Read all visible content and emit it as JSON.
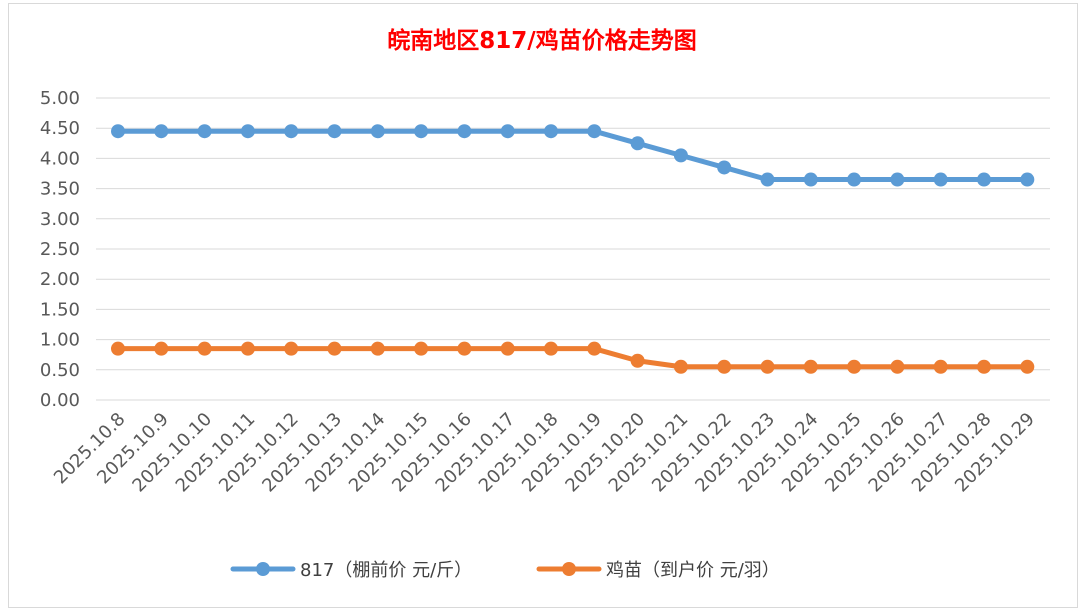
{
  "chart_data": {
    "type": "line",
    "title": "皖南地区817/鸡苗价格走势图",
    "xlabel": "",
    "ylabel": "",
    "categories": [
      "2025.10.8",
      "2025.10.9",
      "2025.10.10",
      "2025.10.11",
      "2025.10.12",
      "2025.10.13",
      "2025.10.14",
      "2025.10.15",
      "2025.10.16",
      "2025.10.17",
      "2025.10.18",
      "2025.10.19",
      "2025.10.20",
      "2025.10.21",
      "2025.10.22",
      "2025.10.23",
      "2025.10.24",
      "2025.10.25",
      "2025.10.26",
      "2025.10.27",
      "2025.10.28",
      "2025.10.29"
    ],
    "ylim": [
      0,
      5
    ],
    "yticks": [
      "0.00",
      "0.50",
      "1.00",
      "1.50",
      "2.00",
      "2.50",
      "3.00",
      "3.50",
      "4.00",
      "4.50",
      "5.00"
    ],
    "grid": true,
    "legend_position": "bottom",
    "series": [
      {
        "name": "817（棚前价 元/斤）",
        "color": "#5b9bd5",
        "values": [
          4.45,
          4.45,
          4.45,
          4.45,
          4.45,
          4.45,
          4.45,
          4.45,
          4.45,
          4.45,
          4.45,
          4.45,
          4.25,
          4.05,
          3.85,
          3.65,
          3.65,
          3.65,
          3.65,
          3.65,
          3.65,
          3.65
        ]
      },
      {
        "name": "鸡苗（到户价 元/羽）",
        "color": "#ed7d31",
        "values": [
          0.85,
          0.85,
          0.85,
          0.85,
          0.85,
          0.85,
          0.85,
          0.85,
          0.85,
          0.85,
          0.85,
          0.85,
          0.65,
          0.55,
          0.55,
          0.55,
          0.55,
          0.55,
          0.55,
          0.55,
          0.55,
          0.55
        ]
      }
    ]
  }
}
